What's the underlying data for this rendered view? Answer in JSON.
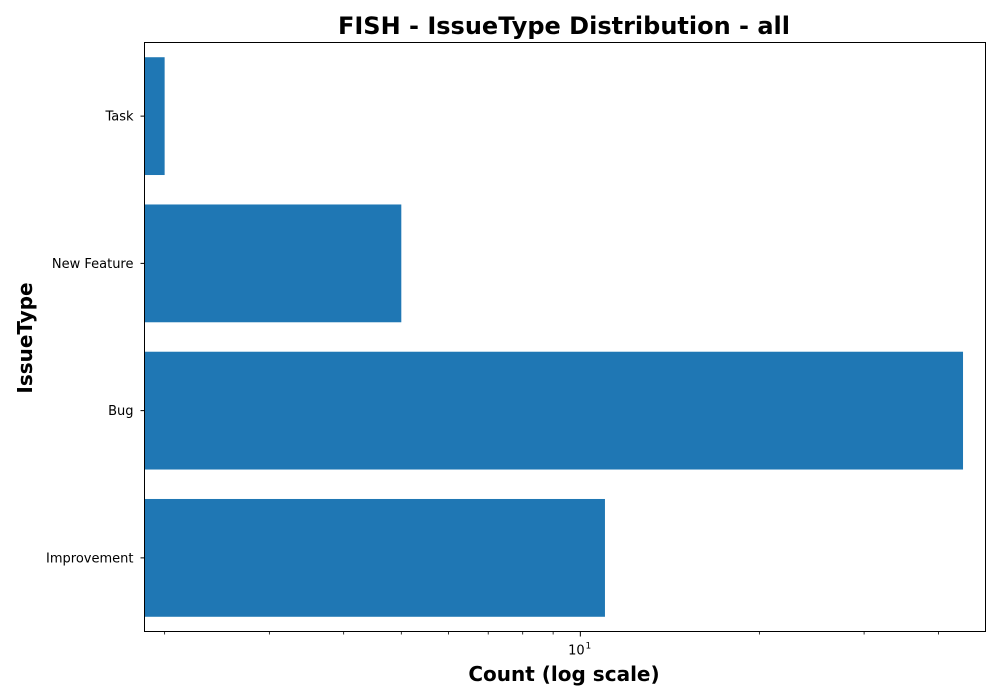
{
  "chart_data": {
    "type": "bar",
    "orientation": "horizontal",
    "title": "FISH - IssueType Distribution - all",
    "xlabel": "Count (log scale)",
    "ylabel": "IssueType",
    "x_scale": "log",
    "xlim": [
      1.85,
      48
    ],
    "x_major_ticks": [
      {
        "value": 10,
        "base": "10",
        "exponent": "1"
      }
    ],
    "x_minor_ticks": [
      2,
      3,
      4,
      5,
      6,
      7,
      8,
      9,
      20,
      30,
      40
    ],
    "categories": [
      "Improvement",
      "Bug",
      "New Feature",
      "Task"
    ],
    "values": [
      11,
      44,
      5,
      2
    ],
    "bar_color": "#1f77b4",
    "grid": false,
    "legend": "none"
  }
}
